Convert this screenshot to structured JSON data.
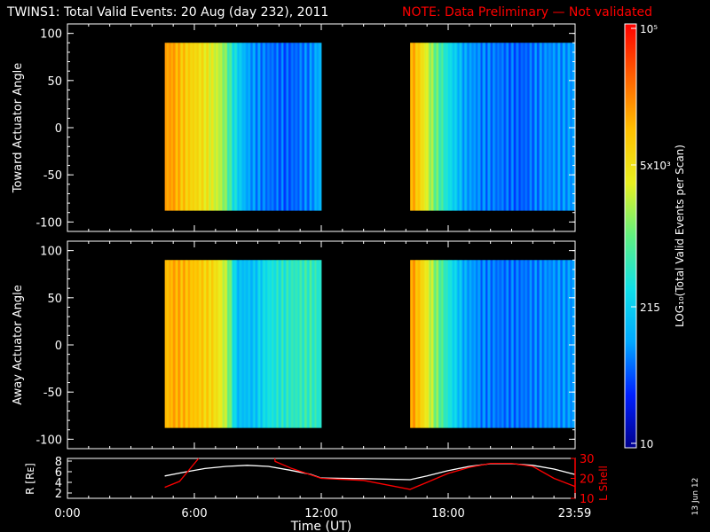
{
  "header": {
    "title": "TWINS1: Total Valid Events: 20 Aug (day 232), 2011",
    "note": "NOTE: Data Preliminary — Not validated",
    "title_color": "#ffffff",
    "note_color": "#ff0000"
  },
  "side_stamp": "13 Jun 12",
  "colorbar": {
    "label": "LOG₁₀(Total Valid Events per Scan)",
    "ticks": [
      "10",
      "215",
      "5x10³",
      "10⁵"
    ],
    "colors": [
      "#00008c",
      "#0020ff",
      "#00a8ff",
      "#10e0e8",
      "#60f080",
      "#e8f020",
      "#ffc000",
      "#ff6000",
      "#ff0000"
    ]
  },
  "chart_data": [
    {
      "type": "heatmap",
      "name": "toward",
      "ylabel": "Toward Actuator Angle",
      "ylim": [
        -110,
        110
      ],
      "yticks": [
        "100",
        "50",
        "0",
        "-50",
        "-100"
      ],
      "xlim_hours": [
        0,
        24
      ],
      "angle_range": [
        -88,
        90
      ],
      "segments": [
        {
          "start": 4.6,
          "end": 12.0,
          "profile": [
            [
              4.6,
              0.78
            ],
            [
              4.9,
              0.8
            ],
            [
              5.6,
              0.72
            ],
            [
              6.5,
              0.66
            ],
            [
              7.2,
              0.58
            ],
            [
              7.5,
              0.52
            ],
            [
              7.8,
              0.4
            ],
            [
              8.5,
              0.25
            ],
            [
              9.5,
              0.2
            ],
            [
              10.5,
              0.18
            ],
            [
              11.5,
              0.22
            ],
            [
              12.0,
              0.28
            ]
          ]
        },
        {
          "start": 16.2,
          "end": 23.98,
          "profile": [
            [
              16.2,
              0.8
            ],
            [
              16.6,
              0.72
            ],
            [
              17.2,
              0.55
            ],
            [
              18.0,
              0.38
            ],
            [
              18.8,
              0.25
            ],
            [
              19.5,
              0.22
            ],
            [
              20.5,
              0.2
            ],
            [
              21.5,
              0.18
            ],
            [
              22.5,
              0.22
            ],
            [
              23.98,
              0.24
            ]
          ]
        }
      ]
    },
    {
      "type": "heatmap",
      "name": "away",
      "ylabel": "Away Actuator Angle",
      "ylim": [
        -110,
        110
      ],
      "yticks": [
        "100",
        "50",
        "0",
        "-50",
        "-100"
      ],
      "xlim_hours": [
        0,
        24
      ],
      "angle_range": [
        -88,
        90
      ],
      "segments": [
        {
          "start": 4.6,
          "end": 12.0,
          "profile": [
            [
              4.6,
              0.74
            ],
            [
              5.0,
              0.78
            ],
            [
              6.0,
              0.74
            ],
            [
              7.0,
              0.68
            ],
            [
              7.6,
              0.55
            ],
            [
              8.0,
              0.3
            ],
            [
              8.8,
              0.3
            ],
            [
              9.5,
              0.38
            ],
            [
              10.5,
              0.42
            ],
            [
              11.5,
              0.44
            ],
            [
              12.0,
              0.4
            ]
          ]
        },
        {
          "start": 16.2,
          "end": 23.98,
          "profile": [
            [
              16.2,
              0.82
            ],
            [
              16.6,
              0.74
            ],
            [
              17.2,
              0.58
            ],
            [
              18.0,
              0.4
            ],
            [
              18.8,
              0.26
            ],
            [
              19.5,
              0.22
            ],
            [
              20.5,
              0.2
            ],
            [
              21.5,
              0.2
            ],
            [
              22.5,
              0.22
            ],
            [
              23.98,
              0.24
            ]
          ]
        }
      ]
    },
    {
      "type": "line",
      "name": "orbit",
      "xlabel": "Time (UT)",
      "xticks": [
        "0:00",
        "6:00",
        "12:00",
        "18:00",
        "23:59"
      ],
      "xtick_hours": [
        0,
        6,
        12,
        18,
        23.98
      ],
      "left_axis": {
        "label": "R [Rᴇ]",
        "ylim": [
          1,
          8.5
        ],
        "ticks": [
          "8",
          "6",
          "4",
          "2"
        ],
        "tick_values": [
          8,
          6,
          4,
          2
        ]
      },
      "right_axis": {
        "label": "L Shell",
        "ylim": [
          10,
          30
        ],
        "ticks": [
          "30",
          "20",
          "10"
        ],
        "tick_values": [
          30,
          20,
          10
        ],
        "color": "#ff0000"
      },
      "series": [
        {
          "axis": "left",
          "color": "#ffffff",
          "x": [
            4.6,
            5.5,
            6.5,
            7.5,
            8.5,
            9.5,
            10.5,
            11.5,
            12.0,
            14.0,
            16.2,
            17.0,
            18.0,
            19.0,
            20.0,
            21.0,
            22.0,
            23.0,
            23.98
          ],
          "y": [
            5.2,
            5.9,
            6.6,
            7.0,
            7.2,
            7.0,
            6.3,
            5.5,
            4.8,
            4.7,
            4.5,
            5.2,
            6.2,
            7.0,
            7.5,
            7.5,
            7.2,
            6.5,
            5.5
          ]
        },
        {
          "axis": "right",
          "color": "#ff0000",
          "x": [
            4.6,
            5.3,
            6.2,
            6.22,
            9.8,
            9.82,
            10.6,
            12.0,
            14.0,
            16.2,
            17.0,
            18.0,
            19.0,
            20.0,
            21.0,
            22.0,
            23.0,
            23.98
          ],
          "y": [
            15.5,
            18.5,
            30.5,
            null,
            30.5,
            28.5,
            25.0,
            20.0,
            19.0,
            14.5,
            18.0,
            22.5,
            25.5,
            27.5,
            27.5,
            26.0,
            20.0,
            16.0
          ]
        }
      ]
    }
  ]
}
